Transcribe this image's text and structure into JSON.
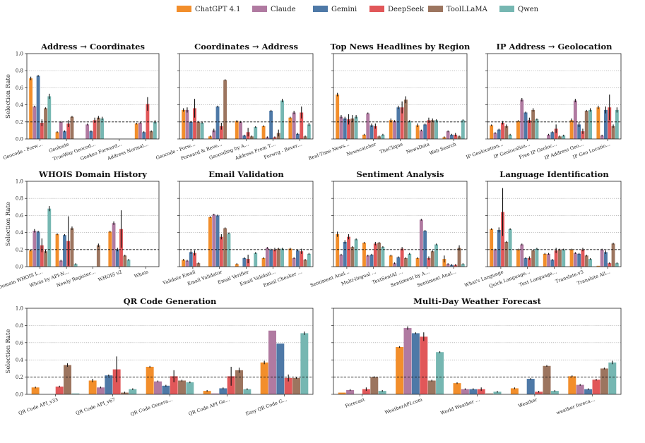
{
  "legend": {
    "position": "top-center",
    "series": [
      {
        "name": "ChatGPT 4.1",
        "color": "#f28e2b"
      },
      {
        "name": "Claude",
        "color": "#b07aa1"
      },
      {
        "name": "Gemini",
        "color": "#4e79a7"
      },
      {
        "name": "DeepSeek",
        "color": "#e15759"
      },
      {
        "name": "ToolLLaMA",
        "color": "#9c755f"
      },
      {
        "name": "Qwen",
        "color": "#76b7b2"
      }
    ]
  },
  "error_color": "#111111",
  "baseline": 0.2,
  "ylabel": "Selection Rate",
  "chart_data": [
    {
      "type": "bar",
      "title": "Address → Coordinates",
      "categories": [
        "Geocode - Forw…",
        "Geoloate",
        "TrueWay Geocod…",
        "Geokeo Forward…",
        "Address Normal…"
      ],
      "values": [
        [
          0.71,
          0.38,
          0.74,
          0.19,
          0.36,
          0.5
        ],
        [
          0.08,
          0.2,
          0.09,
          0.18,
          0.26,
          0.0
        ],
        [
          0.0,
          0.17,
          0.09,
          0.22,
          0.25,
          0.24
        ],
        [
          0.0,
          0.0,
          0.0,
          0.0,
          0.0,
          0.0
        ],
        [
          0.18,
          0.19,
          0.08,
          0.41,
          0.09,
          0.2
        ]
      ],
      "errors": [
        [
          0.02,
          0.01,
          0.01,
          0.04,
          0.01,
          0.03
        ],
        [
          0.01,
          0.01,
          0.01,
          0.04,
          0.01,
          0.0
        ],
        [
          0.0,
          0.01,
          0.01,
          0.03,
          0.02,
          0.02
        ],
        [
          0.0,
          0.0,
          0.0,
          0.0,
          0.0,
          0.0
        ],
        [
          0.01,
          0.01,
          0.01,
          0.08,
          0.01,
          0.02
        ]
      ],
      "ylim": [
        0,
        1
      ],
      "yticks": [
        0,
        0.2,
        0.4,
        0.6,
        0.8,
        1
      ],
      "ytick_labels": [
        "0.0",
        "0.2",
        "0.4",
        "0.6",
        "0.8",
        "1.0"
      ],
      "show_ylabel": true,
      "show_yticklabels": true
    },
    {
      "type": "bar",
      "title": "Coordinates → Address",
      "categories": [
        "Geocode - Forw…",
        "Forward & Reve…",
        "Geocoding by A…",
        "Address From T…",
        "Forwrg - Rever…"
      ],
      "values": [
        [
          0.34,
          0.34,
          0.2,
          0.36,
          0.2,
          0.19
        ],
        [
          0.03,
          0.1,
          0.38,
          0.15,
          0.69,
          0.0
        ],
        [
          0.21,
          0.2,
          0.04,
          0.08,
          0.03,
          0.14
        ],
        [
          0.15,
          0.02,
          0.33,
          0.02,
          0.07,
          0.45
        ],
        [
          0.25,
          0.31,
          0.06,
          0.31,
          0.03,
          0.17
        ]
      ],
      "errors": [
        [
          0.02,
          0.03,
          0.01,
          0.11,
          0.01,
          0.01
        ],
        [
          0.01,
          0.02,
          0.01,
          0.04,
          0.01,
          0.0
        ],
        [
          0.01,
          0.01,
          0.01,
          0.05,
          0.01,
          0.01
        ],
        [
          0.01,
          0.01,
          0.01,
          0.01,
          0.04,
          0.02
        ],
        [
          0.01,
          0.02,
          0.01,
          0.07,
          0.01,
          0.02
        ]
      ],
      "ylim": [
        0,
        1
      ],
      "yticks": [
        0,
        0.2,
        0.4,
        0.6,
        0.8,
        1
      ],
      "ytick_labels": [
        "0.0",
        "0.2",
        "0.4",
        "0.6",
        "0.8",
        "1.0"
      ],
      "show_ylabel": false,
      "show_yticklabels": false
    },
    {
      "type": "bar",
      "title": "Top News Headlines by Region",
      "categories": [
        "Real-Time News…",
        "Newscatcher",
        "TheClique",
        "NewsData",
        "Web Search"
      ],
      "values": [
        [
          0.52,
          0.26,
          0.24,
          0.23,
          0.24,
          0.26
        ],
        [
          0.05,
          0.3,
          0.16,
          0.15,
          0.03,
          0.05
        ],
        [
          0.22,
          0.21,
          0.37,
          0.37,
          0.46,
          0.21
        ],
        [
          0.16,
          0.1,
          0.17,
          0.22,
          0.22,
          0.22
        ],
        [
          0.02,
          0.09,
          0.05,
          0.05,
          0.03,
          0.22
        ]
      ],
      "errors": [
        [
          0.02,
          0.02,
          0.02,
          0.06,
          0.04,
          0.02
        ],
        [
          0.01,
          0.01,
          0.02,
          0.03,
          0.01,
          0.01
        ],
        [
          0.02,
          0.01,
          0.02,
          0.07,
          0.04,
          0.01
        ],
        [
          0.02,
          0.01,
          0.01,
          0.03,
          0.02,
          0.01
        ],
        [
          0.01,
          0.01,
          0.01,
          0.02,
          0.01,
          0.01
        ]
      ],
      "ylim": [
        0,
        1
      ],
      "yticks": [
        0,
        0.2,
        0.4,
        0.6,
        0.8,
        1
      ],
      "ytick_labels": [
        "0.0",
        "0.2",
        "0.4",
        "0.6",
        "0.8",
        "1.0"
      ],
      "show_ylabel": false,
      "show_yticklabels": false
    },
    {
      "type": "bar",
      "title": "IP Address → Geolocation",
      "categories": [
        "IP Geolocation…",
        "IP Geolocalisa…",
        "Free IP Geoloc…",
        "IP Address Geo…",
        "IP Geo Locatio…"
      ],
      "values": [
        [
          0.16,
          0.07,
          0.11,
          0.19,
          0.15,
          0.05
        ],
        [
          0.21,
          0.46,
          0.31,
          0.22,
          0.34,
          0.23
        ],
        [
          0.0,
          0.05,
          0.08,
          0.12,
          0.03,
          0.04
        ],
        [
          0.22,
          0.45,
          0.17,
          0.09,
          0.33,
          0.34
        ],
        [
          0.37,
          0.04,
          0.34,
          0.37,
          0.15,
          0.34
        ]
      ],
      "errors": [
        [
          0.01,
          0.01,
          0.01,
          0.02,
          0.02,
          0.01
        ],
        [
          0.01,
          0.02,
          0.01,
          0.03,
          0.02,
          0.01
        ],
        [
          0.0,
          0.01,
          0.01,
          0.05,
          0.01,
          0.01
        ],
        [
          0.02,
          0.02,
          0.03,
          0.03,
          0.01,
          0.02
        ],
        [
          0.02,
          0.01,
          0.04,
          0.15,
          0.02,
          0.03
        ]
      ],
      "ylim": [
        0,
        1
      ],
      "yticks": [
        0,
        0.2,
        0.4,
        0.6,
        0.8,
        1
      ],
      "ytick_labels": [
        "0.0",
        "0.2",
        "0.4",
        "0.6",
        "0.8",
        "1.0"
      ],
      "show_ylabel": false,
      "show_yticklabels": false
    },
    {
      "type": "bar",
      "title": "WHOIS Domain History",
      "categories": [
        "Domain WHOIS L…",
        "Whois by API-N…",
        "Newly Register…",
        "WHOIS v2",
        "Whois"
      ],
      "values": [
        [
          0.19,
          0.42,
          0.41,
          0.25,
          0.18,
          0.68
        ],
        [
          0.38,
          0.07,
          0.37,
          0.3,
          0.45,
          0.03
        ],
        [
          0.0,
          0.0,
          0.0,
          0.0,
          0.25,
          0.0
        ],
        [
          0.41,
          0.51,
          0.2,
          0.44,
          0.13,
          0.08
        ],
        [
          0.0,
          0.0,
          0.0,
          0.0,
          0.0,
          0.0
        ]
      ],
      "errors": [
        [
          0.01,
          0.02,
          0.01,
          0.08,
          0.02,
          0.03
        ],
        [
          0.01,
          0.01,
          0.01,
          0.29,
          0.02,
          0.01
        ],
        [
          0.0,
          0.0,
          0.0,
          0.0,
          0.02,
          0.0
        ],
        [
          0.01,
          0.02,
          0.02,
          0.22,
          0.01,
          0.01
        ],
        [
          0.0,
          0.0,
          0.0,
          0.0,
          0.0,
          0.0
        ]
      ],
      "ylim": [
        0,
        1
      ],
      "yticks": [
        0,
        0.2,
        0.4,
        0.6,
        0.8,
        1
      ],
      "ytick_labels": [
        "0.0",
        "0.2",
        "0.4",
        "0.6",
        "0.8",
        "1.0"
      ],
      "show_ylabel": true,
      "show_yticklabels": true
    },
    {
      "type": "bar",
      "title": "Email Validation",
      "categories": [
        "Validate Email",
        "Email Validator",
        "Email Verifier",
        "Email Validati…",
        "Email Checker …"
      ],
      "values": [
        [
          0.08,
          0.07,
          0.17,
          0.16,
          0.04,
          0.0
        ],
        [
          0.58,
          0.61,
          0.6,
          0.35,
          0.45,
          0.39
        ],
        [
          0.03,
          0.0,
          0.1,
          0.09,
          0.0,
          0.16
        ],
        [
          0.1,
          0.22,
          0.2,
          0.2,
          0.21,
          0.21
        ],
        [
          0.21,
          0.1,
          0.19,
          0.18,
          0.08,
          0.15
        ]
      ],
      "errors": [
        [
          0.01,
          0.01,
          0.02,
          0.03,
          0.01,
          0.0
        ],
        [
          0.01,
          0.01,
          0.01,
          0.03,
          0.01,
          0.01
        ],
        [
          0.01,
          0.0,
          0.01,
          0.05,
          0.0,
          0.01
        ],
        [
          0.01,
          0.01,
          0.01,
          0.02,
          0.01,
          0.01
        ],
        [
          0.01,
          0.01,
          0.01,
          0.03,
          0.01,
          0.01
        ]
      ],
      "ylim": [
        0,
        1
      ],
      "yticks": [
        0,
        0.2,
        0.4,
        0.6,
        0.8,
        1
      ],
      "ytick_labels": [
        "0.0",
        "0.2",
        "0.4",
        "0.6",
        "0.8",
        "1.0"
      ],
      "show_ylabel": false,
      "show_yticklabels": false
    },
    {
      "type": "bar",
      "title": "Sentiment Analysis",
      "categories": [
        "Sentiment Anal…",
        "Multi-lingual …",
        "TextSentAI …",
        "Sentiment by A…",
        "Sentiment Anal…"
      ],
      "values": [
        [
          0.38,
          0.14,
          0.29,
          0.35,
          0.23,
          0.32
        ],
        [
          0.28,
          0.13,
          0.14,
          0.27,
          0.28,
          0.23
        ],
        [
          0.13,
          0.04,
          0.11,
          0.21,
          0.1,
          0.15
        ],
        [
          0.1,
          0.55,
          0.42,
          0.1,
          0.18,
          0.26
        ],
        [
          0.09,
          0.03,
          0.02,
          0.02,
          0.22,
          0.03
        ]
      ],
      "errors": [
        [
          0.03,
          0.01,
          0.02,
          0.03,
          0.01,
          0.01
        ],
        [
          0.01,
          0.01,
          0.01,
          0.02,
          0.01,
          0.01
        ],
        [
          0.01,
          0.01,
          0.01,
          0.02,
          0.01,
          0.01
        ],
        [
          0.01,
          0.01,
          0.01,
          0.02,
          0.01,
          0.01
        ],
        [
          0.04,
          0.01,
          0.01,
          0.01,
          0.03,
          0.01
        ]
      ],
      "ylim": [
        0,
        1
      ],
      "yticks": [
        0,
        0.2,
        0.4,
        0.6,
        0.8,
        1
      ],
      "ytick_labels": [
        "0.0",
        "0.2",
        "0.4",
        "0.6",
        "0.8",
        "1.0"
      ],
      "show_ylabel": false,
      "show_yticklabels": false
    },
    {
      "type": "bar",
      "title": "Language Identification",
      "categories": [
        "What's Language",
        "Quick Language…",
        "Text Language…",
        "Translate.v3",
        "Translate All…"
      ],
      "values": [
        [
          0.44,
          0.2,
          0.43,
          0.64,
          0.29,
          0.44
        ],
        [
          0.2,
          0.26,
          0.1,
          0.1,
          0.19,
          0.21
        ],
        [
          0.15,
          0.15,
          0.08,
          0.19,
          0.2,
          0.2
        ],
        [
          0.2,
          0.16,
          0.15,
          0.2,
          0.13,
          0.09
        ],
        [
          0.01,
          0.2,
          0.17,
          0.04,
          0.27,
          0.04
        ]
      ],
      "errors": [
        [
          0.01,
          0.01,
          0.03,
          0.28,
          0.01,
          0.01
        ],
        [
          0.01,
          0.01,
          0.01,
          0.02,
          0.01,
          0.01
        ],
        [
          0.01,
          0.01,
          0.01,
          0.03,
          0.01,
          0.01
        ],
        [
          0.01,
          0.01,
          0.01,
          0.02,
          0.01,
          0.01
        ],
        [
          0.0,
          0.01,
          0.02,
          0.01,
          0.01,
          0.01
        ]
      ],
      "ylim": [
        0,
        1
      ],
      "yticks": [
        0,
        0.2,
        0.4,
        0.6,
        0.8,
        1
      ],
      "ytick_labels": [
        "0.0",
        "0.2",
        "0.4",
        "0.6",
        "0.8",
        "1.0"
      ],
      "show_ylabel": false,
      "show_yticklabels": false
    },
    {
      "type": "bar",
      "title": "QR Code Generation",
      "categories": [
        "QR Code API_v33",
        "QR Code API_v67",
        "QR Code Genera…",
        "QR Code API Ge…",
        "Easy QR Code G…"
      ],
      "values": [
        [
          0.08,
          0.0,
          0.0,
          0.09,
          0.34,
          0.01
        ],
        [
          0.16,
          0.08,
          0.22,
          0.29,
          0.02,
          0.06
        ],
        [
          0.32,
          0.15,
          0.1,
          0.21,
          0.16,
          0.14
        ],
        [
          0.04,
          0.01,
          0.07,
          0.21,
          0.28,
          0.06
        ],
        [
          0.37,
          0.74,
          0.59,
          0.19,
          0.19,
          0.71
        ]
      ],
      "errors": [
        [
          0.01,
          0.0,
          0.0,
          0.01,
          0.02,
          0.0
        ],
        [
          0.02,
          0.01,
          0.01,
          0.15,
          0.01,
          0.01
        ],
        [
          0.01,
          0.01,
          0.01,
          0.07,
          0.01,
          0.01
        ],
        [
          0.01,
          0.0,
          0.01,
          0.11,
          0.03,
          0.01
        ],
        [
          0.02,
          0.0,
          0.0,
          0.04,
          0.01,
          0.02
        ]
      ],
      "ylim": [
        0,
        1
      ],
      "yticks": [
        0,
        0.2,
        0.4,
        0.6,
        0.8,
        1
      ],
      "ytick_labels": [
        "0.0",
        "0.2",
        "0.4",
        "0.6",
        "0.8",
        "1.0"
      ],
      "show_ylabel": true,
      "show_yticklabels": true
    },
    {
      "type": "bar",
      "title": "Multi-Day Weather Forecast",
      "categories": [
        "Forecast",
        "WeatherAPI.com",
        "World Weather …",
        "Weather",
        "weather foreca…"
      ],
      "values": [
        [
          0.02,
          0.05,
          0.0,
          0.06,
          0.2,
          0.04
        ],
        [
          0.55,
          0.77,
          0.71,
          0.67,
          0.16,
          0.49
        ],
        [
          0.13,
          0.06,
          0.06,
          0.06,
          0.01,
          0.03
        ],
        [
          0.07,
          0.0,
          0.18,
          0.03,
          0.33,
          0.04
        ],
        [
          0.21,
          0.11,
          0.06,
          0.17,
          0.3,
          0.37
        ]
      ],
      "errors": [
        [
          0.0,
          0.01,
          0.0,
          0.02,
          0.01,
          0.01
        ],
        [
          0.01,
          0.02,
          0.01,
          0.05,
          0.01,
          0.01
        ],
        [
          0.01,
          0.01,
          0.01,
          0.02,
          0.0,
          0.01
        ],
        [
          0.01,
          0.0,
          0.01,
          0.01,
          0.01,
          0.01
        ],
        [
          0.01,
          0.01,
          0.01,
          0.01,
          0.01,
          0.02
        ]
      ],
      "ylim": [
        0,
        1
      ],
      "yticks": [
        0,
        0.2,
        0.4,
        0.6,
        0.8,
        1
      ],
      "ytick_labels": [
        "0.0",
        "0.2",
        "0.4",
        "0.6",
        "0.8",
        "1.0"
      ],
      "show_ylabel": false,
      "show_yticklabels": false
    }
  ]
}
